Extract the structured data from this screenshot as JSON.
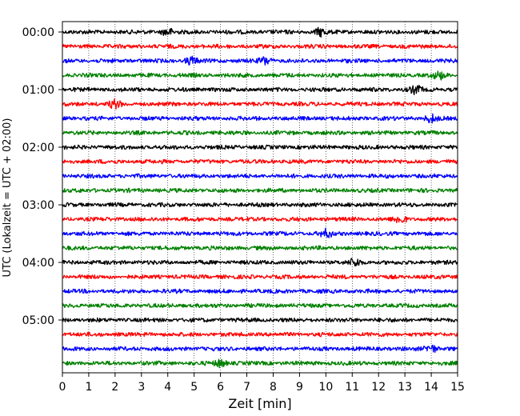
{
  "chart_data": {
    "type": "line",
    "subtype": "seismic-helicorder",
    "xlabel": "Zeit  [min]",
    "ylabel": "UTC (Lokalzeit = UTC + 02:00)",
    "xlim": [
      0,
      15
    ],
    "x_ticks": [
      0,
      1,
      2,
      3,
      4,
      5,
      6,
      7,
      8,
      9,
      10,
      11,
      12,
      13,
      14,
      15
    ],
    "grid": "vertical dotted lines at each minute",
    "trace_interval_minutes": 15,
    "trace_count": 24,
    "trace_colors": [
      "#000000",
      "#ff0000",
      "#0000ff",
      "#008000"
    ],
    "y_ticks": [
      {
        "label": "00:00",
        "trace_index": 0
      },
      {
        "label": "01:00",
        "trace_index": 4
      },
      {
        "label": "02:00",
        "trace_index": 8
      },
      {
        "label": "03:00",
        "trace_index": 12
      },
      {
        "label": "04:00",
        "trace_index": 16
      },
      {
        "label": "05:00",
        "trace_index": 20
      }
    ],
    "notable_events": [
      {
        "trace_index": 0,
        "minute": 4.0
      },
      {
        "trace_index": 0,
        "minute": 9.8
      },
      {
        "trace_index": 2,
        "minute": 4.9
      },
      {
        "trace_index": 2,
        "minute": 7.7
      },
      {
        "trace_index": 3,
        "minute": 14.3
      },
      {
        "trace_index": 4,
        "minute": 13.4
      },
      {
        "trace_index": 5,
        "minute": 2.0
      },
      {
        "trace_index": 6,
        "minute": 14.0
      },
      {
        "trace_index": 13,
        "minute": 12.8
      },
      {
        "trace_index": 14,
        "minute": 10.0
      },
      {
        "trace_index": 16,
        "minute": 11.1
      },
      {
        "trace_index": 22,
        "minute": 14.0
      },
      {
        "trace_index": 23,
        "minute": 6.0
      }
    ]
  }
}
